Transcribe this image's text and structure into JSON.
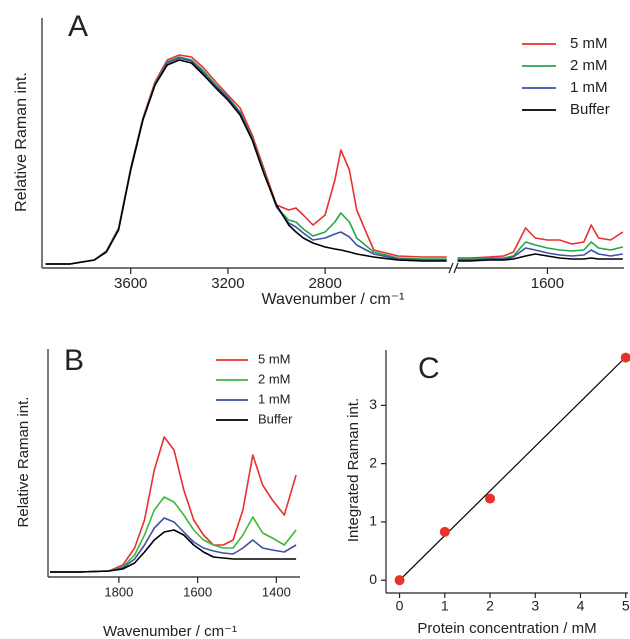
{
  "chart_data": [
    {
      "type": "line",
      "panel_label": "A",
      "ylabel": "Relative Raman int.",
      "xlabel": "Wavenumber / cm⁻¹",
      "x": [
        3950,
        3850,
        3750,
        3700,
        3650,
        3600,
        3550,
        3500,
        3450,
        3400,
        3350,
        3300,
        3250,
        3200,
        3150,
        3100,
        3050,
        3000,
        2950,
        2920,
        2890,
        2850,
        2800,
        2760,
        2735,
        2700,
        2670,
        2600,
        2500,
        2400,
        2300,
        1970,
        1920,
        1840,
        1780,
        1740,
        1690,
        1650,
        1600,
        1550,
        1500,
        1450,
        1420,
        1390,
        1340,
        1290
      ],
      "segments": [
        {
          "xlim": [
            3965,
            2285
          ]
        },
        {
          "xlim": [
            1975,
            1285
          ]
        }
      ],
      "ylim": [
        -2,
        124
      ],
      "xticks": [
        3600,
        3200,
        2800,
        1600
      ],
      "legend": "upper right",
      "series": [
        {
          "name": "5 mM",
          "color": "#e8312f",
          "values": [
            0,
            0,
            2,
            6.5,
            18,
            48,
            73,
            91,
            102,
            104.5,
            103.5,
            98,
            91,
            84.5,
            78,
            64.5,
            47,
            29.5,
            27,
            28,
            24.5,
            19.5,
            24.5,
            42,
            57,
            47,
            27,
            7,
            4,
            3.5,
            3.5,
            3,
            3,
            3.5,
            4,
            6,
            18,
            13,
            12,
            12,
            10,
            11,
            19.5,
            13,
            12,
            16
          ]
        },
        {
          "name": "2 mM",
          "color": "#22a84a",
          "values": [
            0,
            0,
            2,
            6.5,
            17.5,
            47.5,
            72.5,
            90,
            101,
            103.5,
            102,
            96.5,
            89.5,
            83.5,
            76,
            63,
            45.5,
            28.5,
            22,
            21,
            17.5,
            14,
            16,
            21,
            25.5,
            21,
            13,
            6,
            3,
            2.5,
            2.5,
            2.5,
            2.5,
            3,
            3,
            4,
            11,
            9.5,
            8,
            7,
            6.5,
            7,
            11,
            8,
            7,
            8.5
          ]
        },
        {
          "name": "1 mM",
          "color": "#3f51a5",
          "values": [
            0,
            0,
            2,
            6,
            17.5,
            47,
            72,
            89.5,
            100.5,
            103,
            101.5,
            95.5,
            89,
            83,
            75.5,
            62.5,
            45,
            28.5,
            20.5,
            18.5,
            15.5,
            12,
            13,
            15,
            16,
            13.5,
            9.5,
            5,
            2.5,
            2,
            2,
            2,
            2,
            2.5,
            2.5,
            3.5,
            8,
            7,
            5.5,
            4.5,
            4,
            4.5,
            7,
            5,
            4,
            5
          ]
        },
        {
          "name": "Buffer",
          "color": "#000000",
          "values": [
            0,
            0,
            2,
            6,
            17,
            47,
            72,
            89.5,
            99.5,
            102,
            100.5,
            94.5,
            88,
            82,
            74.5,
            62,
            44.5,
            29.5,
            19.5,
            16,
            13,
            10.5,
            8.5,
            7.5,
            7,
            6,
            5,
            3.5,
            2,
            1.5,
            1.5,
            1.5,
            1.5,
            2,
            2,
            2.5,
            4,
            5,
            4,
            3,
            2.5,
            2.5,
            3,
            2.5,
            2.5,
            2.5
          ]
        }
      ]
    },
    {
      "type": "line",
      "panel_label": "B",
      "ylabel": "Relative Raman int.",
      "xlabel": "Wavenumber / cm⁻¹",
      "x": [
        1975,
        1900,
        1825,
        1790,
        1760,
        1735,
        1710,
        1685,
        1660,
        1635,
        1610,
        1585,
        1560,
        1535,
        1510,
        1485,
        1460,
        1435,
        1410,
        1380,
        1350
      ],
      "xlim": [
        1980,
        1340
      ],
      "ylim": [
        -5,
        225
      ],
      "xticks": [
        1800,
        1600,
        1400
      ],
      "legend": "upper right",
      "series": [
        {
          "name": "5 mM",
          "color": "#e8312f",
          "values": [
            0,
            0,
            1,
            7,
            24,
            52,
            102,
            135,
            122,
            82,
            52,
            37,
            27,
            27,
            32,
            62,
            117,
            87,
            72,
            57,
            97
          ]
        },
        {
          "name": "2 mM",
          "color": "#3cb83c",
          "values": [
            0,
            0,
            1,
            5,
            17,
            37,
            62,
            75,
            70,
            57,
            42,
            32,
            27,
            24,
            24,
            37,
            55,
            39,
            34,
            27,
            42
          ]
        },
        {
          "name": "1 mM",
          "color": "#3f51a5",
          "values": [
            0,
            0,
            1,
            4,
            13,
            27,
            44,
            54,
            50,
            40,
            30,
            24,
            21,
            19,
            18,
            24,
            32,
            24,
            22,
            20,
            27
          ]
        },
        {
          "name": "Buffer",
          "color": "#000000",
          "values": [
            0,
            0,
            1,
            3,
            9,
            20,
            32,
            40,
            42,
            37,
            27,
            20,
            15,
            14,
            13,
            13,
            13,
            13,
            13,
            13,
            13
          ]
        }
      ]
    },
    {
      "type": "scatter",
      "panel_label": "C",
      "ylabel": "Integrated Raman int.",
      "xlabel": "Protein concentration / mM",
      "x": [
        0,
        1,
        2,
        5
      ],
      "values": [
        0,
        0.83,
        1.4,
        3.82
      ],
      "color": "#e8332a",
      "fit_line": {
        "x": [
          0,
          5
        ],
        "values": [
          0,
          3.83
        ],
        "color": "#000000"
      },
      "xlim": [
        -0.3,
        5.05
      ],
      "ylim": [
        -0.22,
        3.95
      ],
      "xticks": [
        0,
        1,
        2,
        3,
        4,
        5
      ],
      "yticks": [
        0,
        1,
        2,
        3
      ]
    }
  ]
}
